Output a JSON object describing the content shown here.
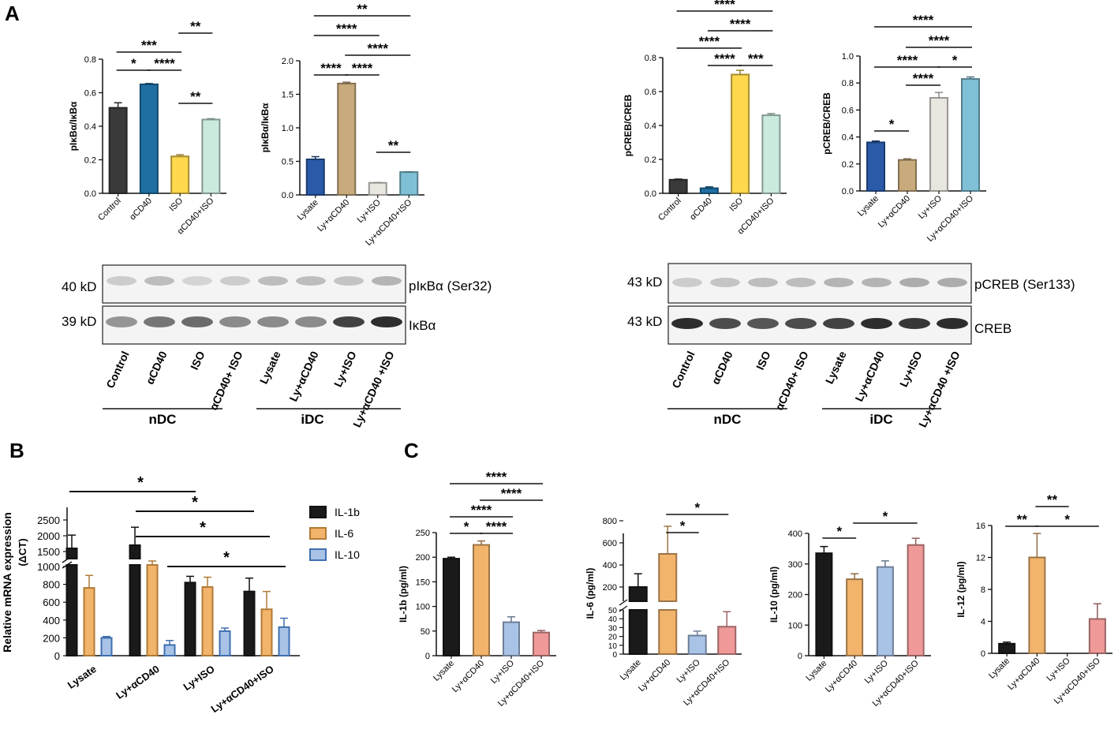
{
  "panel_labels": {
    "a": "A",
    "b": "B",
    "c": "C"
  },
  "colors": {
    "black": "#1a1a1a",
    "dark_gray": "#3a3a3a",
    "blue_dark": "#1f6fa3",
    "yellow": "#ffd84d",
    "mint": "#c9eadc",
    "navy": "#2a5aa8",
    "tan": "#c8aa7c",
    "light_gray": "#e9e6e0",
    "sky": "#7fc0d6",
    "orange": "#f2b36b",
    "light_blue": "#a9c3e6",
    "salmon": "#ef9a98",
    "teal_edge": "#4a9a80"
  },
  "blots": {
    "ikb": {
      "marker_top": "40 kD",
      "marker_bottom": "39 kD",
      "label_top": "pIκBα (Ser32)",
      "label_bottom": "IκBα",
      "lanes": [
        "Control",
        "αCD40",
        "ISO",
        "αCD40+ ISO",
        "Lysate",
        "Ly+αCD40",
        "Ly+ISO",
        "Ly+αCD40 +ISO"
      ],
      "group_left": "nDC",
      "group_right": "iDC"
    },
    "creb": {
      "marker_top": "43 kD",
      "marker_bottom": "43 kD",
      "label_top": "pCREB (Ser133)",
      "label_bottom": "CREB",
      "lanes": [
        "Control",
        "αCD40",
        "ISO",
        "αCD40+ ISO",
        "Lysate",
        "Ly+αCD40",
        "Ly+ISO",
        "Ly+αCD40 +ISO"
      ],
      "group_left": "nDC",
      "group_right": "iDC"
    }
  },
  "chart_data": [
    {
      "id": "a1",
      "type": "bar",
      "title": "",
      "ylabel": "pIκBα/IκBα",
      "ylim": [
        0,
        0.8
      ],
      "ticks": [
        "0.0",
        "0.2",
        "0.4",
        "0.6",
        "0.8"
      ],
      "categories": [
        "Control",
        "αCD40",
        "ISO",
        "αCD40+ISO"
      ],
      "values": [
        0.51,
        0.65,
        0.22,
        0.44
      ],
      "errors": [
        0.03,
        0.005,
        0.01,
        0.005
      ],
      "colors": [
        "#3a3a3a",
        "#1f6fa3",
        "#ffd84d",
        "#c9eadc"
      ],
      "brackets": [
        {
          "from": 2,
          "to": 3,
          "label": "**"
        },
        {
          "from": 0,
          "to": 2,
          "label": "***"
        },
        {
          "from": 0,
          "to": 1,
          "label": "*"
        },
        {
          "from": 1,
          "to": 2,
          "label": "****"
        },
        {
          "from": 2,
          "to": 3,
          "label": "**",
          "low": true
        }
      ]
    },
    {
      "id": "a2",
      "type": "bar",
      "title": "",
      "ylabel": "pIκBα/IκBα",
      "ylim": [
        0,
        2.0
      ],
      "ticks": [
        "0.0",
        "0.5",
        "1.0",
        "1.5",
        "2.0"
      ],
      "categories": [
        "Lysate",
        "Ly+αCD40",
        "Ly+ISO",
        "Ly+αCD40+ISO"
      ],
      "values": [
        0.53,
        1.66,
        0.18,
        0.34
      ],
      "errors": [
        0.04,
        0.02,
        0.005,
        0.005
      ],
      "colors": [
        "#2a5aa8",
        "#c8aa7c",
        "#e9e6e0",
        "#7fc0d6"
      ],
      "brackets": [
        {
          "from": 0,
          "to": 3,
          "label": "**"
        },
        {
          "from": 0,
          "to": 2,
          "label": "****"
        },
        {
          "from": 1,
          "to": 3,
          "label": "****"
        },
        {
          "from": 0,
          "to": 1,
          "label": "****"
        },
        {
          "from": 1,
          "to": 2,
          "label": "****"
        },
        {
          "from": 2,
          "to": 3,
          "label": "**"
        }
      ]
    },
    {
      "id": "a3",
      "type": "bar",
      "title": "",
      "ylabel": "pCREB/CREB",
      "ylim": [
        0,
        0.8
      ],
      "ticks": [
        "0.0",
        "0.2",
        "0.4",
        "0.6",
        "0.8"
      ],
      "categories": [
        "Control",
        "αCD40",
        "ISO",
        "αCD40+ISO"
      ],
      "values": [
        0.08,
        0.03,
        0.7,
        0.46
      ],
      "errors": [
        0.004,
        0.008,
        0.025,
        0.01
      ],
      "colors": [
        "#3a3a3a",
        "#1f6fa3",
        "#ffd84d",
        "#c9eadc"
      ],
      "brackets": [
        {
          "from": 0,
          "to": 3,
          "label": "****"
        },
        {
          "from": 1,
          "to": 3,
          "label": "****"
        },
        {
          "from": 0,
          "to": 2,
          "label": "****"
        },
        {
          "from": 1,
          "to": 2,
          "label": "****"
        },
        {
          "from": 2,
          "to": 3,
          "label": "***"
        }
      ]
    },
    {
      "id": "a4",
      "type": "bar",
      "title": "",
      "ylabel": "pCREB/CREB",
      "ylim": [
        0,
        1.0
      ],
      "ticks": [
        "0.0",
        "0.2",
        "0.4",
        "0.6",
        "0.8",
        "1.0"
      ],
      "categories": [
        "Lysate",
        "Ly+αCD40",
        "Ly+ISO",
        "Ly+αCD40+ISO"
      ],
      "values": [
        0.36,
        0.23,
        0.69,
        0.83
      ],
      "errors": [
        0.01,
        0.008,
        0.04,
        0.015
      ],
      "colors": [
        "#2a5aa8",
        "#c8aa7c",
        "#e9e6e0",
        "#7fc0d6"
      ],
      "brackets": [
        {
          "from": 0,
          "to": 3,
          "label": "****"
        },
        {
          "from": 1,
          "to": 3,
          "label": "****"
        },
        {
          "from": 0,
          "to": 2,
          "label": "****"
        },
        {
          "from": 2,
          "to": 3,
          "label": "*"
        },
        {
          "from": 1,
          "to": 2,
          "label": "****"
        },
        {
          "from": 0,
          "to": 1,
          "label": "*"
        }
      ]
    },
    {
      "id": "b",
      "type": "bar",
      "title": "",
      "ylabel": "Relative mRNA expression",
      "ylabel2": "(ΔCT)",
      "broken_axis": true,
      "ticks_lower": [
        "0",
        "200",
        "400",
        "600",
        "800",
        "1000"
      ],
      "ticks_upper": [
        "1000",
        "1500",
        "2000",
        "2500"
      ],
      "categories": [
        "Lysate",
        "Ly+αCD40",
        "Ly+ISO",
        "Ly+αCD40+ISO"
      ],
      "legend": [
        "IL-1b",
        "IL-6",
        "IL-10"
      ],
      "series": [
        {
          "name": "IL-1b",
          "values": [
            1600,
            1700,
            820,
            720
          ],
          "errors": [
            420,
            570,
            70,
            150
          ]
        },
        {
          "name": "IL-6",
          "values": [
            760,
            1050,
            770,
            520
          ],
          "errors": [
            140,
            150,
            110,
            200
          ]
        },
        {
          "name": "IL-10",
          "values": [
            200,
            120,
            275,
            320
          ],
          "errors": [
            15,
            50,
            35,
            100
          ]
        }
      ],
      "significance": [
        "*",
        "*",
        "*",
        "*"
      ]
    },
    {
      "id": "c1",
      "type": "bar",
      "title": "",
      "ylabel": "IL-1b (pg/ml)",
      "ylim": [
        0,
        250
      ],
      "ticks": [
        "0",
        "50",
        "100",
        "150",
        "200",
        "250"
      ],
      "categories": [
        "Lysate",
        "Ly+αCD40",
        "Ly+ISO",
        "Ly+αCD40+ISO"
      ],
      "values": [
        197,
        225,
        68,
        47
      ],
      "errors": [
        3,
        8,
        11,
        4
      ],
      "colors": [
        "#1a1a1a",
        "#f2b36b",
        "#a9c3e6",
        "#ef9a98"
      ],
      "brackets": [
        {
          "from": 0,
          "to": 3,
          "label": "****"
        },
        {
          "from": 1,
          "to": 3,
          "label": "****"
        },
        {
          "from": 0,
          "to": 2,
          "label": "****"
        },
        {
          "from": 0,
          "to": 1,
          "label": "*"
        },
        {
          "from": 1,
          "to": 2,
          "label": "****"
        }
      ]
    },
    {
      "id": "c2",
      "type": "bar",
      "title": "",
      "ylabel": "IL-6 (pg/ml)",
      "broken_axis": true,
      "ticks_lower": [
        "0",
        "10",
        "20",
        "30",
        "40",
        "50"
      ],
      "ticks_upper": [
        "200",
        "400",
        "600",
        "800"
      ],
      "categories": [
        "Lysate",
        "Ly+αCD40",
        "Ly+ISO",
        "Ly+αCD40+ISO"
      ],
      "values": [
        200,
        500,
        21,
        31
      ],
      "errors": [
        120,
        250,
        5,
        17
      ],
      "colors": [
        "#1a1a1a",
        "#f2b36b",
        "#a9c3e6",
        "#ef9a98"
      ],
      "brackets": [
        {
          "from": 1,
          "to": 3,
          "label": "*"
        },
        {
          "from": 1,
          "to": 2,
          "label": "*"
        }
      ]
    },
    {
      "id": "c3",
      "type": "bar",
      "title": "",
      "ylabel": "IL-10 (pg/ml)",
      "ylim": [
        0,
        400
      ],
      "ticks": [
        "0",
        "100",
        "200",
        "300",
        "400"
      ],
      "categories": [
        "Lysate",
        "Ly+αCD40",
        "Ly+ISO",
        "Ly+αCD40+ISO"
      ],
      "values": [
        335,
        250,
        290,
        362
      ],
      "errors": [
        22,
        18,
        20,
        22
      ],
      "colors": [
        "#1a1a1a",
        "#f2b36b",
        "#a9c3e6",
        "#ef9a98"
      ],
      "brackets": [
        {
          "from": 0,
          "to": 1,
          "label": "*"
        },
        {
          "from": 1,
          "to": 3,
          "label": "*"
        }
      ]
    },
    {
      "id": "c4",
      "type": "bar",
      "title": "",
      "ylabel": "IL-12 (pg/ml)",
      "ylim": [
        0,
        16
      ],
      "ticks": [
        "0",
        "4",
        "8",
        "12",
        "16"
      ],
      "categories": [
        "Lysate",
        "Ly+αCD40",
        "Ly+ISO",
        "Ly+αCD40+ISO"
      ],
      "values": [
        1.2,
        12,
        0,
        4.3
      ],
      "errors": [
        0.2,
        3,
        0,
        1.9
      ],
      "colors": [
        "#1a1a1a",
        "#f2b36b",
        "#a9c3e6",
        "#ef9a98"
      ],
      "brackets": [
        {
          "from": 0,
          "to": 1,
          "label": "**"
        },
        {
          "from": 1,
          "to": 2,
          "label": "**"
        },
        {
          "from": 1,
          "to": 3,
          "label": "*"
        }
      ]
    }
  ]
}
